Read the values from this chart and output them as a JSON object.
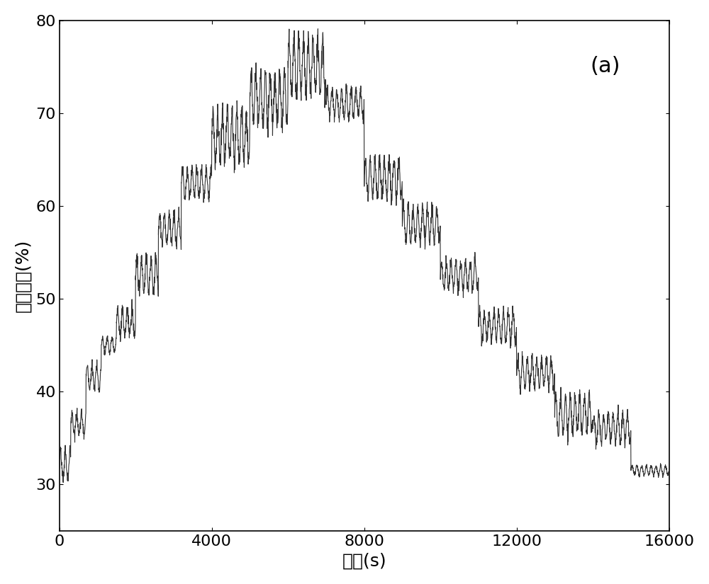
{
  "title_label": "(a)",
  "xlabel": "时间(s)",
  "ylabel": "相对湿度(%)",
  "xlim": [
    0,
    16000
  ],
  "ylim": [
    25,
    80
  ],
  "yticks": [
    30,
    40,
    50,
    60,
    70,
    80
  ],
  "xticks": [
    0,
    4000,
    8000,
    12000,
    16000
  ],
  "line_color": "#1a1a1a",
  "background_color": "#ffffff",
  "segments": [
    {
      "t_start": 0,
      "t_end": 300,
      "rh_base": 32,
      "rh_osc": 1.5,
      "osc_freq": 0.05
    },
    {
      "t_start": 300,
      "t_end": 700,
      "rh_base": 36.5,
      "rh_osc": 1.2,
      "osc_freq": 0.05
    },
    {
      "t_start": 700,
      "t_end": 1100,
      "rh_base": 41.5,
      "rh_osc": 1.2,
      "osc_freq": 0.05
    },
    {
      "t_start": 1100,
      "t_end": 1500,
      "rh_base": 45.0,
      "rh_osc": 0.8,
      "osc_freq": 0.04
    },
    {
      "t_start": 1500,
      "t_end": 2000,
      "rh_base": 47.5,
      "rh_osc": 1.5,
      "osc_freq": 0.05
    },
    {
      "t_start": 2000,
      "t_end": 2600,
      "rh_base": 52.5,
      "rh_osc": 1.8,
      "osc_freq": 0.05
    },
    {
      "t_start": 2600,
      "t_end": 3200,
      "rh_base": 57.5,
      "rh_osc": 1.5,
      "osc_freq": 0.04
    },
    {
      "t_start": 3200,
      "t_end": 4000,
      "rh_base": 62.5,
      "rh_osc": 1.5,
      "osc_freq": 0.04
    },
    {
      "t_start": 4000,
      "t_end": 5000,
      "rh_base": 67.5,
      "rh_osc": 2.5,
      "osc_freq": 0.04
    },
    {
      "t_start": 5000,
      "t_end": 6000,
      "rh_base": 71.5,
      "rh_osc": 3.0,
      "osc_freq": 0.04
    },
    {
      "t_start": 6000,
      "t_end": 7000,
      "rh_base": 75.0,
      "rh_osc": 3.0,
      "osc_freq": 0.04
    },
    {
      "t_start": 7000,
      "t_end": 8000,
      "rh_base": 71.0,
      "rh_osc": 1.5,
      "osc_freq": 0.04
    },
    {
      "t_start": 8000,
      "t_end": 9000,
      "rh_base": 63.0,
      "rh_osc": 2.0,
      "osc_freq": 0.04
    },
    {
      "t_start": 9000,
      "t_end": 10000,
      "rh_base": 58.0,
      "rh_osc": 1.8,
      "osc_freq": 0.04
    },
    {
      "t_start": 10000,
      "t_end": 11000,
      "rh_base": 52.5,
      "rh_osc": 1.5,
      "osc_freq": 0.04
    },
    {
      "t_start": 11000,
      "t_end": 12000,
      "rh_base": 47.0,
      "rh_osc": 1.5,
      "osc_freq": 0.04
    },
    {
      "t_start": 12000,
      "t_end": 13000,
      "rh_base": 42.0,
      "rh_osc": 1.5,
      "osc_freq": 0.04
    },
    {
      "t_start": 13000,
      "t_end": 14000,
      "rh_base": 37.5,
      "rh_osc": 2.0,
      "osc_freq": 0.05
    },
    {
      "t_start": 14000,
      "t_end": 15000,
      "rh_base": 36.0,
      "rh_osc": 1.5,
      "osc_freq": 0.04
    },
    {
      "t_start": 15000,
      "t_end": 16000,
      "rh_base": 31.5,
      "rh_osc": 0.5,
      "osc_freq": 0.02
    }
  ],
  "transitions": [
    {
      "t": 300,
      "rh_from": 32,
      "rh_to": 36.5
    },
    {
      "t": 700,
      "rh_from": 36.5,
      "rh_to": 41.5
    },
    {
      "t": 1100,
      "rh_from": 41.5,
      "rh_to": 45.0
    },
    {
      "t": 1500,
      "rh_from": 45.0,
      "rh_to": 47.5
    },
    {
      "t": 2000,
      "rh_from": 47.5,
      "rh_to": 52.5
    },
    {
      "t": 2600,
      "rh_from": 52.5,
      "rh_to": 57.5
    },
    {
      "t": 3200,
      "rh_from": 57.5,
      "rh_to": 62.5
    },
    {
      "t": 4000,
      "rh_from": 62.5,
      "rh_to": 67.5
    },
    {
      "t": 5000,
      "rh_from": 67.5,
      "rh_to": 71.5
    },
    {
      "t": 6000,
      "rh_from": 71.5,
      "rh_to": 75.0
    },
    {
      "t": 7000,
      "rh_from": 75.0,
      "rh_to": 71.0
    },
    {
      "t": 8000,
      "rh_from": 71.0,
      "rh_to": 63.0
    },
    {
      "t": 9000,
      "rh_from": 63.0,
      "rh_to": 58.0
    },
    {
      "t": 10000,
      "rh_from": 58.0,
      "rh_to": 52.5
    },
    {
      "t": 11000,
      "rh_from": 52.5,
      "rh_to": 47.0
    },
    {
      "t": 12000,
      "rh_from": 47.0,
      "rh_to": 42.0
    },
    {
      "t": 13000,
      "rh_from": 42.0,
      "rh_to": 37.5
    },
    {
      "t": 14000,
      "rh_from": 37.5,
      "rh_to": 36.0
    },
    {
      "t": 15000,
      "rh_from": 36.0,
      "rh_to": 31.5
    }
  ]
}
